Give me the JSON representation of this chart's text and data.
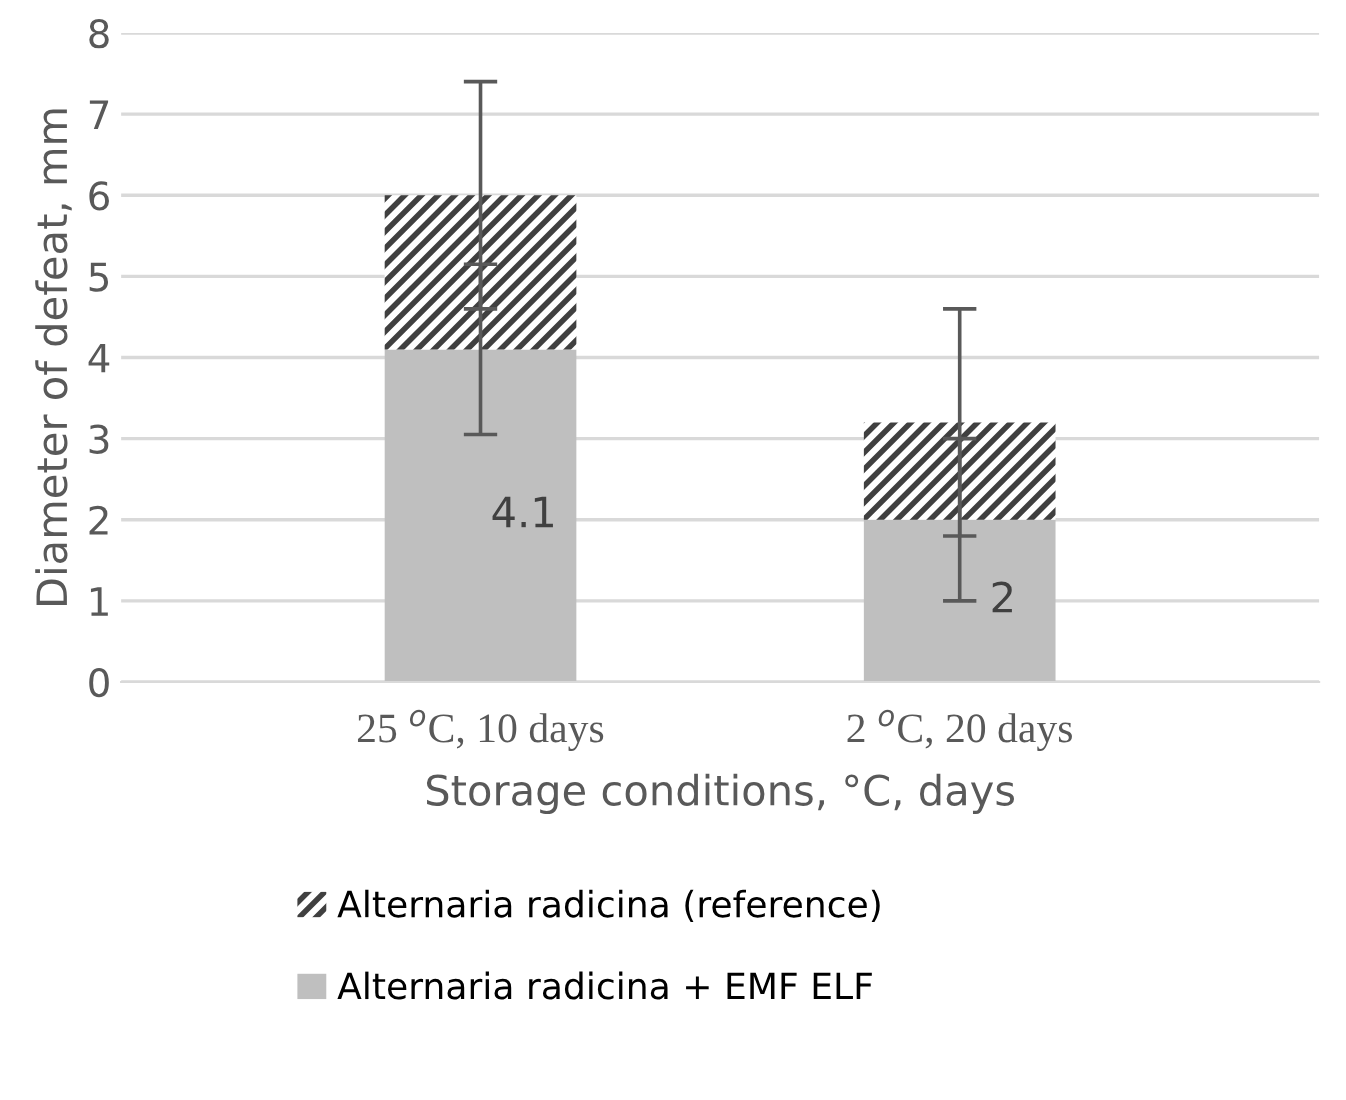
{
  "chart_data": {
    "type": "bar",
    "stacked": true,
    "xlabel": "Storage conditions, °C, days",
    "ylabel": "Diameter of defeat, mm",
    "categories": [
      "25 $^{o}$C, 10 days",
      "2 $^{o}$C, 20 days"
    ],
    "series": [
      {
        "name": "Alternaria radicina + EMF ELF",
        "color": "#bfbfbf",
        "values": [
          4.1,
          2
        ],
        "errors": [
          1.05,
          1.0
        ],
        "value_labels": [
          "4.1",
          "2"
        ]
      },
      {
        "name": "Alternaria radicina (reference)",
        "color": "#404040",
        "values": [
          1.9,
          1.2
        ],
        "errors": [
          1.4,
          1.4
        ]
      }
    ],
    "ylim": [
      0,
      8
    ],
    "yticks": [
      0,
      1,
      2,
      3,
      4,
      5,
      6,
      7,
      8
    ],
    "grid": "y",
    "legend": "bottom"
  }
}
